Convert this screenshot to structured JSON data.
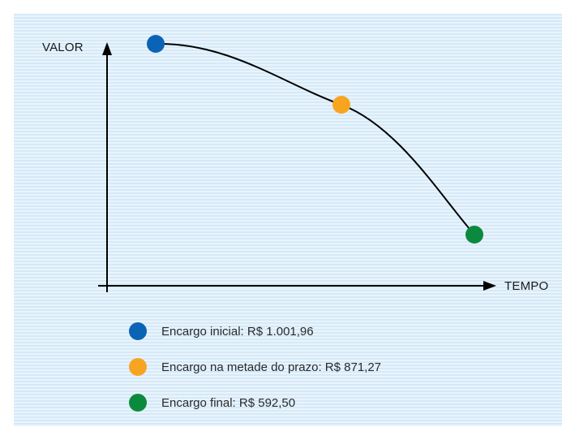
{
  "chart_data": {
    "type": "line",
    "xlabel": "TEMPO",
    "ylabel": "VALOR",
    "grid": false,
    "legend_position": "bottom-left",
    "series": [
      {
        "points": [
          {
            "label": "Encargo inicial: R$ 1.001,96",
            "value": 1001.96,
            "color": "#0b63b5"
          },
          {
            "label": "Encargo na metade do prazo: R$ 871,27",
            "value": 871.27,
            "color": "#f7a521"
          },
          {
            "label": "Encargo final: R$ 592,50",
            "value": 592.5,
            "color": "#0b8a3e"
          }
        ]
      }
    ]
  }
}
